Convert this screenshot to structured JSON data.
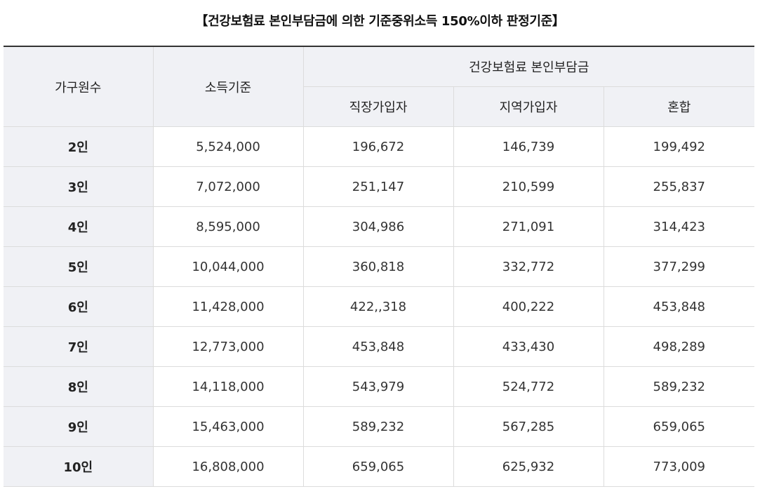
{
  "title": "【건강보험료 본인부담금에 의한 기준중위소득 150%이하 판정기준】",
  "headers": {
    "household": "가구원수",
    "income": "소득기준",
    "insurance_group": "건강보험료 본인부담금",
    "employee": "직장가입자",
    "regional": "지역가입자",
    "mixed": "혼합"
  },
  "rows": [
    {
      "size": "2인",
      "income": "5,524,000",
      "employee": "196,672",
      "regional": "146,739",
      "mixed": "199,492"
    },
    {
      "size": "3인",
      "income": "7,072,000",
      "employee": "251,147",
      "regional": "210,599",
      "mixed": "255,837"
    },
    {
      "size": "4인",
      "income": "8,595,000",
      "employee": "304,986",
      "regional": "271,091",
      "mixed": "314,423"
    },
    {
      "size": "5인",
      "income": "10,044,000",
      "employee": "360,818",
      "regional": "332,772",
      "mixed": "377,299"
    },
    {
      "size": "6인",
      "income": "11,428,000",
      "employee": "422,,318",
      "regional": "400,222",
      "mixed": "453,848"
    },
    {
      "size": "7인",
      "income": "12,773,000",
      "employee": "453,848",
      "regional": "433,430",
      "mixed": "498,289"
    },
    {
      "size": "8인",
      "income": "14,118,000",
      "employee": "543,979",
      "regional": "524,772",
      "mixed": "589,232"
    },
    {
      "size": "9인",
      "income": "15,463,000",
      "employee": "589,232",
      "regional": "567,285",
      "mixed": "659,065"
    },
    {
      "size": "10인",
      "income": "16,808,000",
      "employee": "659,065",
      "regional": "625,932",
      "mixed": "773,009"
    }
  ]
}
